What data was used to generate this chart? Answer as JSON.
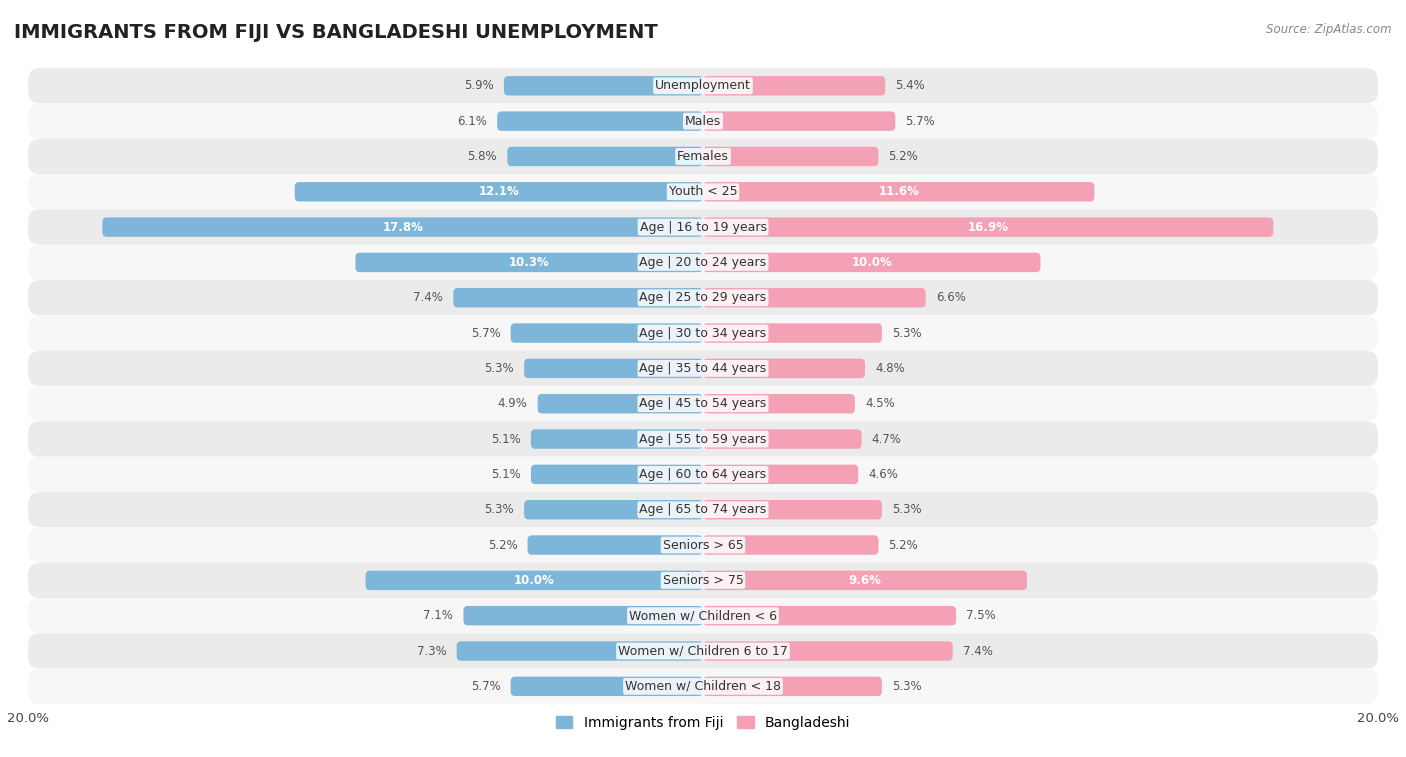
{
  "title": "IMMIGRANTS FROM FIJI VS BANGLADESHI UNEMPLOYMENT",
  "source": "Source: ZipAtlas.com",
  "categories": [
    "Unemployment",
    "Males",
    "Females",
    "Youth < 25",
    "Age | 16 to 19 years",
    "Age | 20 to 24 years",
    "Age | 25 to 29 years",
    "Age | 30 to 34 years",
    "Age | 35 to 44 years",
    "Age | 45 to 54 years",
    "Age | 55 to 59 years",
    "Age | 60 to 64 years",
    "Age | 65 to 74 years",
    "Seniors > 65",
    "Seniors > 75",
    "Women w/ Children < 6",
    "Women w/ Children 6 to 17",
    "Women w/ Children < 18"
  ],
  "fiji_values": [
    5.9,
    6.1,
    5.8,
    12.1,
    17.8,
    10.3,
    7.4,
    5.7,
    5.3,
    4.9,
    5.1,
    5.1,
    5.3,
    5.2,
    10.0,
    7.1,
    7.3,
    5.7
  ],
  "bangladeshi_values": [
    5.4,
    5.7,
    5.2,
    11.6,
    16.9,
    10.0,
    6.6,
    5.3,
    4.8,
    4.5,
    4.7,
    4.6,
    5.3,
    5.2,
    9.6,
    7.5,
    7.4,
    5.3
  ],
  "fiji_color": "#7eb6d9",
  "bangladeshi_color": "#f4a0b5",
  "fiji_label": "Immigrants from Fiji",
  "bangladeshi_label": "Bangladeshi",
  "axis_max": 20.0,
  "bar_height": 0.55,
  "bg_color": "#ffffff",
  "row_bg_even": "#ebebeb",
  "row_bg_odd": "#f7f7f7",
  "title_fontsize": 14,
  "category_fontsize": 9,
  "value_fontsize": 8.5,
  "legend_fontsize": 10,
  "value_color_inside": "#ffffff",
  "value_color_outside": "#555555"
}
